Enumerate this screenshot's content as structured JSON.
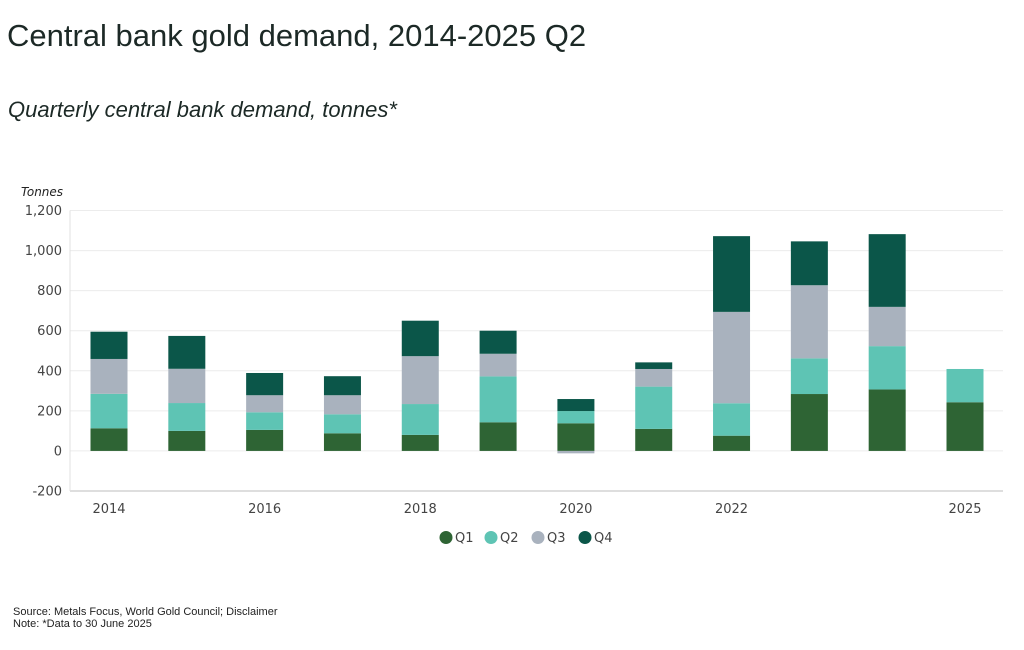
{
  "title": "Central bank gold demand, 2014-2025 Q2",
  "subtitle": "Quarterly central bank demand, tonnes*",
  "footer": {
    "source": "Source: Metals Focus, World Gold Council; Disclaimer",
    "note": "Note: *Data to 30 June 2025"
  },
  "chart_data": {
    "type": "bar",
    "stacked": true,
    "title": "Central bank gold demand, 2014-2025 Q2",
    "subtitle": "Quarterly central bank demand, tonnes*",
    "xlabel": "",
    "ylabel": "Tonnes",
    "ylim": [
      -200,
      1200
    ],
    "yticks": [
      -200,
      0,
      200,
      400,
      600,
      800,
      1000,
      1200
    ],
    "ytick_labels": [
      "-200",
      "0",
      "200",
      "400",
      "600",
      "800",
      "1,000",
      "1,200"
    ],
    "categories": [
      "2014",
      "2015",
      "2016",
      "2017",
      "2018",
      "2019",
      "2020",
      "2021",
      "2022",
      "2023",
      "2024",
      "2025"
    ],
    "xtick_labels": [
      "2014",
      "",
      "2016",
      "",
      "2018",
      "",
      "2020",
      "",
      "2022",
      "",
      "",
      "2025"
    ],
    "grid": true,
    "legend_position": "bottom-center",
    "series": [
      {
        "name": "Q1",
        "color": "#2e6434",
        "values": [
          113,
          100,
          105,
          88,
          80,
          143,
          138,
          110,
          76,
          284,
          307,
          243
        ]
      },
      {
        "name": "Q2",
        "color": "#5ec4b4",
        "values": [
          172,
          139,
          88,
          95,
          154,
          229,
          61,
          211,
          162,
          178,
          216,
          166
        ]
      },
      {
        "name": "Q3",
        "color": "#a9b2be",
        "values": [
          174,
          171,
          85,
          95,
          239,
          113,
          -12,
          88,
          456,
          365,
          196,
          null
        ]
      },
      {
        "name": "Q4",
        "color": "#0b5649",
        "values": [
          136,
          164,
          111,
          95,
          177,
          115,
          60,
          33,
          378,
          219,
          363,
          null
        ]
      }
    ]
  }
}
